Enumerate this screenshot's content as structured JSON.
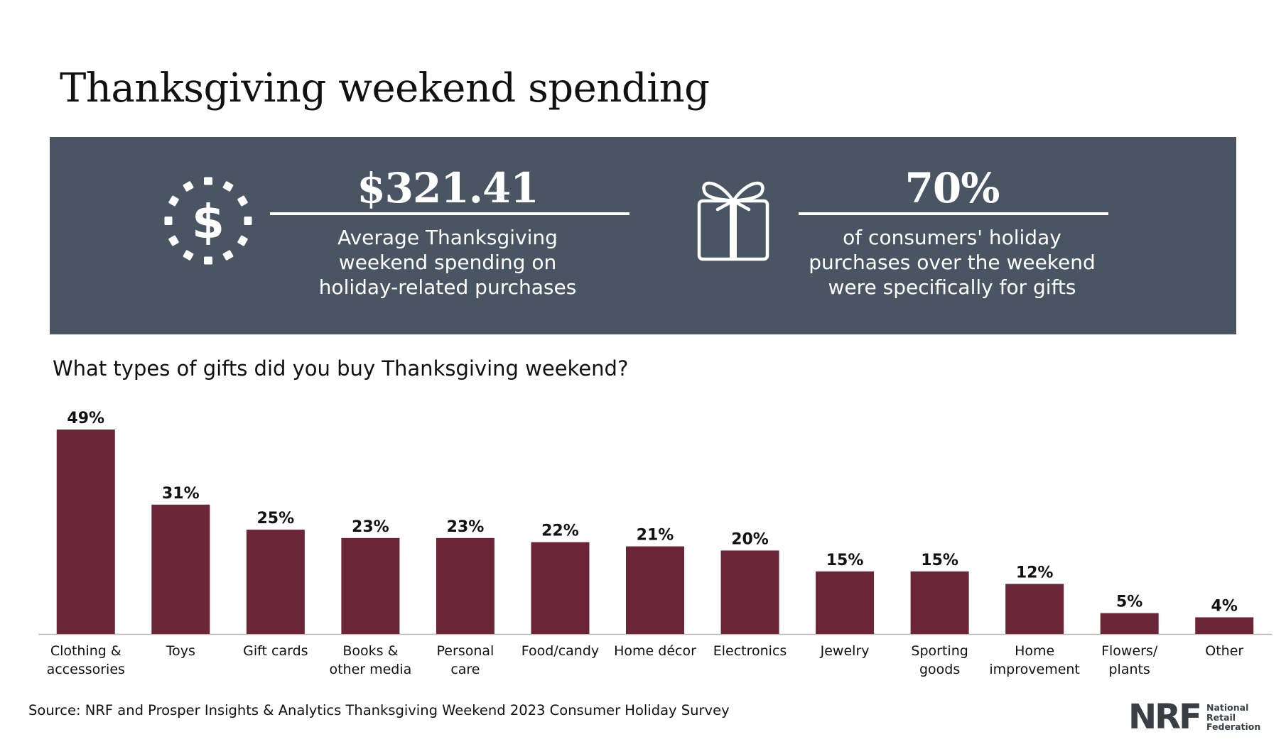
{
  "title": "Thanksgiving weekend spending",
  "stats": {
    "spending": {
      "value": "$321.41",
      "description_lines": [
        "Average Thanksgiving",
        "weekend spending on",
        "holiday-related purchases"
      ],
      "icon": "dollar-icon"
    },
    "gifts": {
      "value": "70%",
      "description_lines": [
        "of consumers' holiday",
        "purchases over the weekend",
        "were specifically for gifts"
      ],
      "icon": "gift-icon"
    }
  },
  "question": "What types of gifts did you buy Thanksgiving weekend?",
  "chart_data": {
    "type": "bar",
    "title": "What types of gifts did you buy Thanksgiving weekend?",
    "categories": [
      [
        "Clothing &",
        "accessories"
      ],
      [
        "Toys"
      ],
      [
        "Gift cards"
      ],
      [
        "Books &",
        "other media"
      ],
      [
        "Personal",
        "care"
      ],
      [
        "Food/candy"
      ],
      [
        "Home décor"
      ],
      [
        "Electronics"
      ],
      [
        "Jewelry"
      ],
      [
        "Sporting",
        "goods"
      ],
      [
        "Home",
        "improvement"
      ],
      [
        "Flowers/",
        "plants"
      ],
      [
        "Other"
      ]
    ],
    "values": [
      49,
      31,
      25,
      23,
      23,
      22,
      21,
      20,
      15,
      15,
      12,
      5,
      4
    ],
    "data_labels": [
      "49%",
      "31%",
      "25%",
      "23%",
      "23%",
      "22%",
      "21%",
      "20%",
      "15%",
      "15%",
      "12%",
      "5%",
      "4%"
    ],
    "ylim": [
      0,
      49
    ],
    "grid": false,
    "bar_color": "#6a2637",
    "axis_color": "#b8b8b8"
  },
  "source": "Source: NRF and Prosper Insights & Analytics Thanksgiving Weekend 2023 Consumer Holiday Survey",
  "logo": {
    "mark": "NRF",
    "text_lines": [
      "National",
      "Retail",
      "Federation"
    ]
  },
  "colors": {
    "banner": "#4a5563",
    "bar": "#6a2637",
    "text": "#111111"
  }
}
